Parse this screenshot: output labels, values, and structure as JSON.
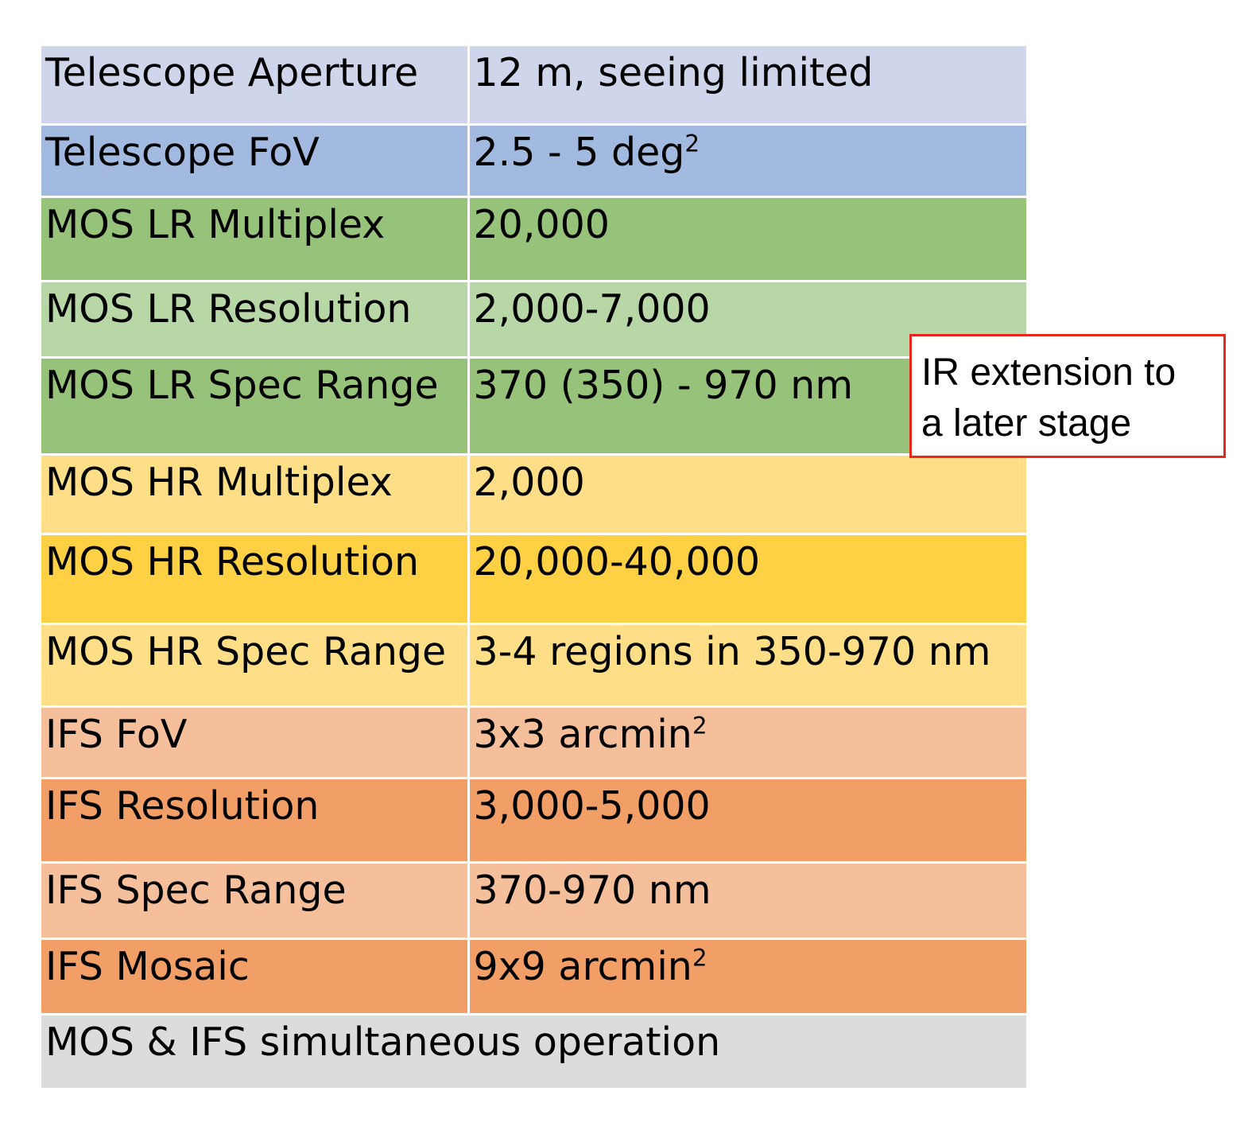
{
  "rows": [
    {
      "label": "Telescope Aperture",
      "value": "12 m, seeing limited",
      "sup": "",
      "color": "#cfd5ea",
      "height": 98
    },
    {
      "label": "Telescope FoV",
      "value": "2.5 - 5 deg",
      "sup": "2",
      "color": "#a2b9e0",
      "height": 91
    },
    {
      "label": "MOS LR Multiplex",
      "value": "20,000",
      "sup": "",
      "color": "#96c27a",
      "height": 106
    },
    {
      "label": "MOS LR Resolution",
      "value": "2,000-7,000",
      "sup": "",
      "color": "#b8d7a7",
      "height": 96
    },
    {
      "label": "MOS LR Spec Range",
      "value": "370 (350) - 970 nm",
      "sup": "",
      "color": "#96c27a",
      "height": 122
    },
    {
      "label": "MOS HR Multiplex",
      "value": "2,000",
      "sup": "",
      "color": "#fedf87",
      "height": 100
    },
    {
      "label": "MOS HR Resolution",
      "value": "20,000-40,000",
      "sup": "",
      "color": "#fed043",
      "height": 113
    },
    {
      "label": "MOS HR Spec Range",
      "value": "3-4 regions in 350-970 nm",
      "sup": "",
      "color": "#fedf87",
      "height": 104
    },
    {
      "label": "IFS FoV",
      "value": "3x3 arcmin",
      "sup": "2",
      "color": "#f6bf9b",
      "height": 90
    },
    {
      "label": "IFS Resolution",
      "value": "3,000-5,000",
      "sup": "",
      "color": "#f19f67",
      "height": 106
    },
    {
      "label": "IFS Spec Range",
      "value": "370-970 nm",
      "sup": "",
      "color": "#f6bf9b",
      "height": 96
    },
    {
      "label": "IFS Mosaic",
      "value": "9x9 arcmin",
      "sup": "2",
      "color": "#f19f67",
      "height": 95
    }
  ],
  "footer_row": {
    "label": "MOS & IFS simultaneous operation",
    "color": "#dcdcdc",
    "height": 93
  },
  "note": {
    "line1": "IR extension to",
    "line2": "a later stage",
    "border_color": "#e8271c"
  }
}
